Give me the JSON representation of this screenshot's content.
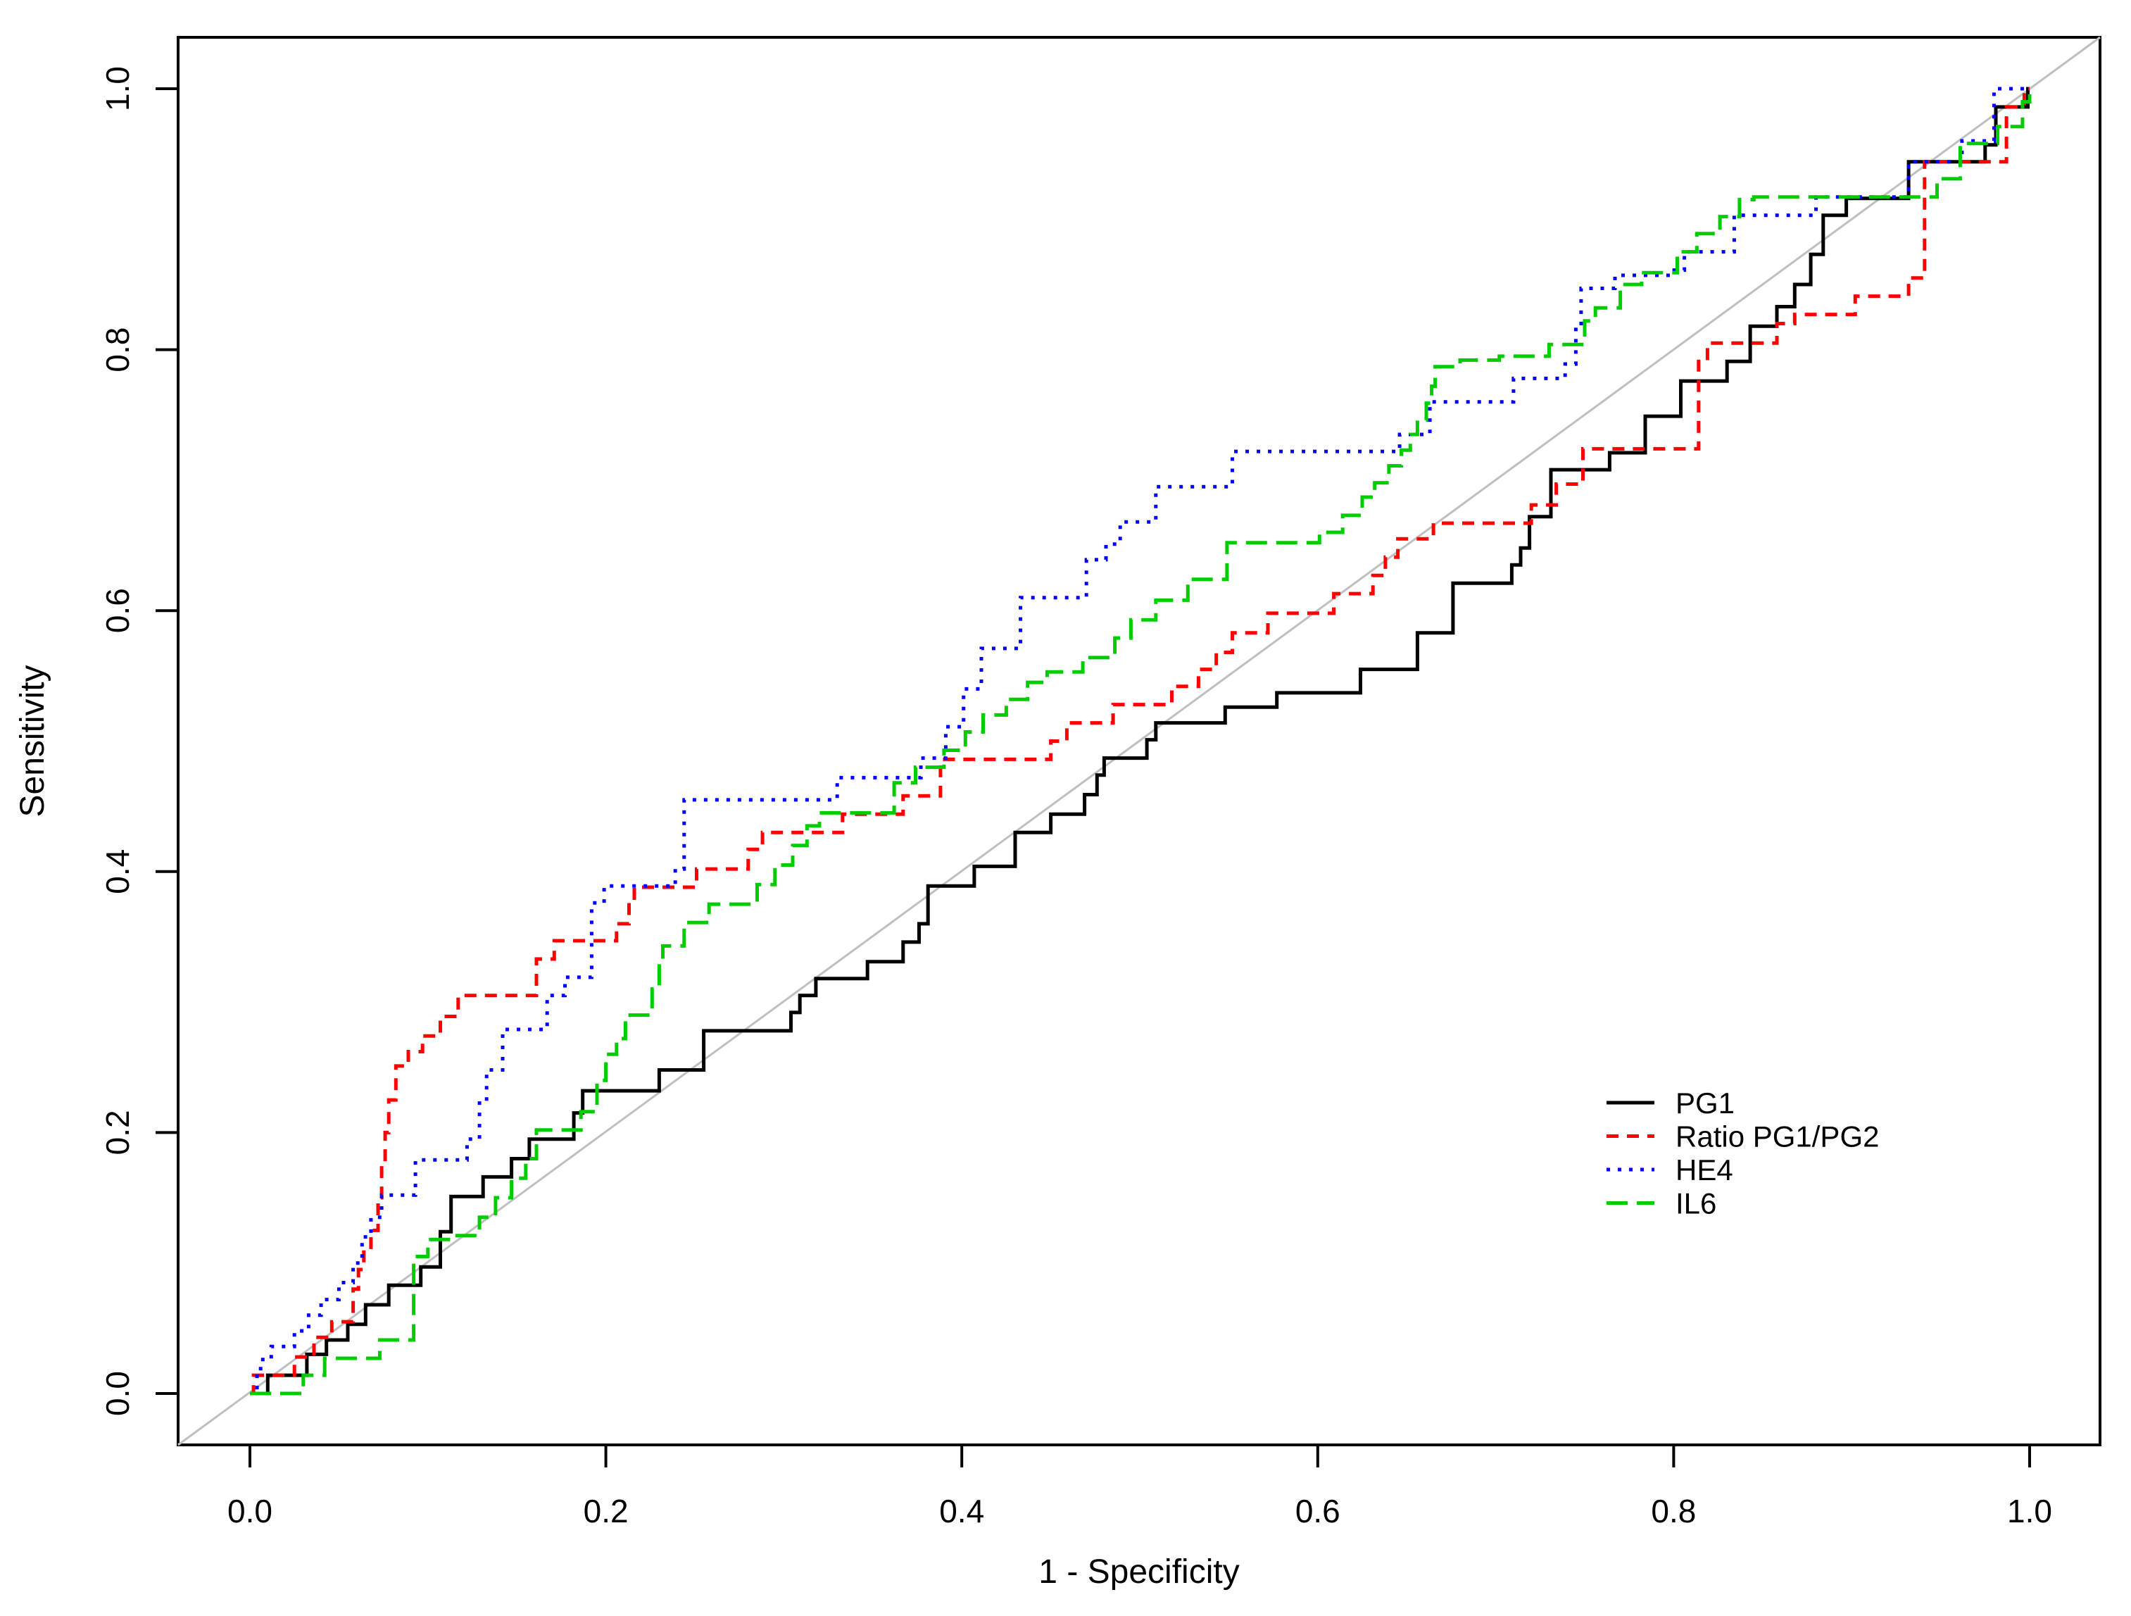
{
  "chart_data": {
    "type": "line",
    "subtype": "roc-step-curves",
    "title": "",
    "xlabel": "1 - Specificity",
    "ylabel": "Sensitivity",
    "xlim": [
      0.0,
      1.0
    ],
    "ylim": [
      0.0,
      1.0
    ],
    "axis_padding_fraction": 0.04,
    "grid": false,
    "x_ticks": {
      "values": [
        0.0,
        0.2,
        0.4,
        0.6,
        0.8,
        1.0
      ],
      "labels": [
        "0.0",
        "0.2",
        "0.4",
        "0.6",
        "0.8",
        "1.0"
      ]
    },
    "y_ticks": {
      "values": [
        0.0,
        0.2,
        0.4,
        0.6,
        0.8,
        1.0
      ],
      "labels": [
        "0.0",
        "0.2",
        "0.4",
        "0.6",
        "0.8",
        "1.0"
      ]
    },
    "reference_line": {
      "type": "diagonal",
      "from": [
        0,
        0
      ],
      "to": [
        1,
        1
      ],
      "color": "#bfbfbf",
      "style": "solid"
    },
    "legend": {
      "position": "right-lower",
      "border": false,
      "entries": [
        "PG1",
        "Ratio PG1/PG2",
        "HE4",
        "IL6"
      ]
    },
    "series": [
      {
        "name": "PG1",
        "color": "#000000",
        "linestyle": "solid",
        "dash": "",
        "points": [
          [
            0,
            0
          ],
          [
            0.01,
            0.014
          ],
          [
            0.032,
            0.03
          ],
          [
            0.043,
            0.041
          ],
          [
            0.055,
            0.053
          ],
          [
            0.065,
            0.068
          ],
          [
            0.078,
            0.083
          ],
          [
            0.096,
            0.097
          ],
          [
            0.107,
            0.124
          ],
          [
            0.113,
            0.151
          ],
          [
            0.131,
            0.166
          ],
          [
            0.147,
            0.18
          ],
          [
            0.157,
            0.195
          ],
          [
            0.182,
            0.215
          ],
          [
            0.187,
            0.232
          ],
          [
            0.23,
            0.248
          ],
          [
            0.255,
            0.278
          ],
          [
            0.304,
            0.292
          ],
          [
            0.309,
            0.305
          ],
          [
            0.318,
            0.318
          ],
          [
            0.347,
            0.331
          ],
          [
            0.367,
            0.346
          ],
          [
            0.376,
            0.36
          ],
          [
            0.381,
            0.389
          ],
          [
            0.407,
            0.404
          ],
          [
            0.43,
            0.43
          ],
          [
            0.45,
            0.444
          ],
          [
            0.469,
            0.459
          ],
          [
            0.476,
            0.474
          ],
          [
            0.48,
            0.487
          ],
          [
            0.504,
            0.501
          ],
          [
            0.509,
            0.514
          ],
          [
            0.548,
            0.526
          ],
          [
            0.577,
            0.537
          ],
          [
            0.624,
            0.555
          ],
          [
            0.656,
            0.583
          ],
          [
            0.676,
            0.621
          ],
          [
            0.709,
            0.635
          ],
          [
            0.714,
            0.648
          ],
          [
            0.719,
            0.672
          ],
          [
            0.731,
            0.708
          ],
          [
            0.764,
            0.721
          ],
          [
            0.784,
            0.749
          ],
          [
            0.804,
            0.776
          ],
          [
            0.83,
            0.791
          ],
          [
            0.843,
            0.818
          ],
          [
            0.858,
            0.833
          ],
          [
            0.868,
            0.85
          ],
          [
            0.877,
            0.873
          ],
          [
            0.884,
            0.903
          ],
          [
            0.897,
            0.916
          ],
          [
            0.932,
            0.944
          ],
          [
            0.975,
            0.957
          ],
          [
            0.981,
            0.986
          ],
          [
            0.999,
            1.0
          ],
          [
            1.0,
            1.0
          ]
        ]
      },
      {
        "name": "Ratio PG1/PG2",
        "color": "#ff0000",
        "linestyle": "dashed",
        "dash": "17,12",
        "points": [
          [
            0,
            0
          ],
          [
            0.002,
            0.014
          ],
          [
            0.025,
            0.028
          ],
          [
            0.036,
            0.043
          ],
          [
            0.046,
            0.055
          ],
          [
            0.058,
            0.08
          ],
          [
            0.061,
            0.095
          ],
          [
            0.064,
            0.11
          ],
          [
            0.068,
            0.125
          ],
          [
            0.072,
            0.15
          ],
          [
            0.074,
            0.175
          ],
          [
            0.076,
            0.2
          ],
          [
            0.078,
            0.225
          ],
          [
            0.082,
            0.251
          ],
          [
            0.089,
            0.262
          ],
          [
            0.097,
            0.274
          ],
          [
            0.107,
            0.289
          ],
          [
            0.117,
            0.305
          ],
          [
            0.161,
            0.333
          ],
          [
            0.171,
            0.347
          ],
          [
            0.206,
            0.36
          ],
          [
            0.213,
            0.376
          ],
          [
            0.216,
            0.388
          ],
          [
            0.251,
            0.402
          ],
          [
            0.28,
            0.417
          ],
          [
            0.288,
            0.43
          ],
          [
            0.333,
            0.444
          ],
          [
            0.367,
            0.458
          ],
          [
            0.388,
            0.486
          ],
          [
            0.45,
            0.5
          ],
          [
            0.459,
            0.514
          ],
          [
            0.485,
            0.528
          ],
          [
            0.518,
            0.542
          ],
          [
            0.533,
            0.555
          ],
          [
            0.543,
            0.568
          ],
          [
            0.552,
            0.583
          ],
          [
            0.572,
            0.598
          ],
          [
            0.609,
            0.613
          ],
          [
            0.631,
            0.627
          ],
          [
            0.638,
            0.641
          ],
          [
            0.645,
            0.655
          ],
          [
            0.665,
            0.667
          ],
          [
            0.72,
            0.681
          ],
          [
            0.734,
            0.697
          ],
          [
            0.749,
            0.724
          ],
          [
            0.814,
            0.791
          ],
          [
            0.819,
            0.805
          ],
          [
            0.858,
            0.82
          ],
          [
            0.868,
            0.827
          ],
          [
            0.902,
            0.841
          ],
          [
            0.932,
            0.855
          ],
          [
            0.941,
            0.944
          ],
          [
            0.987,
            0.986
          ],
          [
            0.997,
            1.0
          ],
          [
            1.0,
            1.0
          ]
        ]
      },
      {
        "name": "HE4",
        "color": "#0000ff",
        "linestyle": "dotted",
        "dash": "5,11",
        "points": [
          [
            0,
            0
          ],
          [
            0.004,
            0.016
          ],
          [
            0.006,
            0.026
          ],
          [
            0.012,
            0.036
          ],
          [
            0.025,
            0.048
          ],
          [
            0.033,
            0.06
          ],
          [
            0.04,
            0.072
          ],
          [
            0.05,
            0.085
          ],
          [
            0.058,
            0.1
          ],
          [
            0.063,
            0.12
          ],
          [
            0.068,
            0.135
          ],
          [
            0.074,
            0.152
          ],
          [
            0.093,
            0.179
          ],
          [
            0.122,
            0.195
          ],
          [
            0.129,
            0.224
          ],
          [
            0.133,
            0.248
          ],
          [
            0.142,
            0.279
          ],
          [
            0.167,
            0.305
          ],
          [
            0.177,
            0.319
          ],
          [
            0.192,
            0.376
          ],
          [
            0.199,
            0.389
          ],
          [
            0.239,
            0.402
          ],
          [
            0.244,
            0.455
          ],
          [
            0.33,
            0.472
          ],
          [
            0.377,
            0.487
          ],
          [
            0.391,
            0.511
          ],
          [
            0.401,
            0.54
          ],
          [
            0.411,
            0.571
          ],
          [
            0.433,
            0.61
          ],
          [
            0.47,
            0.639
          ],
          [
            0.481,
            0.651
          ],
          [
            0.489,
            0.668
          ],
          [
            0.509,
            0.695
          ],
          [
            0.552,
            0.722
          ],
          [
            0.646,
            0.735
          ],
          [
            0.663,
            0.76
          ],
          [
            0.71,
            0.778
          ],
          [
            0.739,
            0.789
          ],
          [
            0.745,
            0.82
          ],
          [
            0.748,
            0.847
          ],
          [
            0.767,
            0.857
          ],
          [
            0.799,
            0.861
          ],
          [
            0.806,
            0.875
          ],
          [
            0.834,
            0.903
          ],
          [
            0.88,
            0.917
          ],
          [
            0.932,
            0.944
          ],
          [
            0.962,
            0.96
          ],
          [
            0.98,
            1.0
          ],
          [
            1.0,
            1.0
          ]
        ]
      },
      {
        "name": "IL6",
        "color": "#00cd00",
        "linestyle": "longdash",
        "dash": "30,13",
        "points": [
          [
            0,
            0
          ],
          [
            0.03,
            0.014
          ],
          [
            0.042,
            0.027
          ],
          [
            0.073,
            0.041
          ],
          [
            0.092,
            0.105
          ],
          [
            0.1,
            0.118
          ],
          [
            0.114,
            0.121
          ],
          [
            0.129,
            0.135
          ],
          [
            0.138,
            0.15
          ],
          [
            0.147,
            0.165
          ],
          [
            0.155,
            0.18
          ],
          [
            0.161,
            0.202
          ],
          [
            0.186,
            0.216
          ],
          [
            0.195,
            0.24
          ],
          [
            0.2,
            0.26
          ],
          [
            0.206,
            0.272
          ],
          [
            0.211,
            0.29
          ],
          [
            0.226,
            0.31
          ],
          [
            0.23,
            0.33
          ],
          [
            0.232,
            0.343
          ],
          [
            0.244,
            0.361
          ],
          [
            0.258,
            0.375
          ],
          [
            0.285,
            0.39
          ],
          [
            0.295,
            0.405
          ],
          [
            0.305,
            0.42
          ],
          [
            0.313,
            0.435
          ],
          [
            0.32,
            0.445
          ],
          [
            0.362,
            0.468
          ],
          [
            0.374,
            0.48
          ],
          [
            0.39,
            0.493
          ],
          [
            0.402,
            0.507
          ],
          [
            0.412,
            0.52
          ],
          [
            0.425,
            0.532
          ],
          [
            0.437,
            0.545
          ],
          [
            0.448,
            0.553
          ],
          [
            0.468,
            0.564
          ],
          [
            0.486,
            0.579
          ],
          [
            0.495,
            0.593
          ],
          [
            0.509,
            0.608
          ],
          [
            0.527,
            0.624
          ],
          [
            0.549,
            0.652
          ],
          [
            0.601,
            0.66
          ],
          [
            0.614,
            0.673
          ],
          [
            0.625,
            0.687
          ],
          [
            0.632,
            0.698
          ],
          [
            0.64,
            0.711
          ],
          [
            0.647,
            0.723
          ],
          [
            0.652,
            0.735
          ],
          [
            0.656,
            0.746
          ],
          [
            0.661,
            0.759
          ],
          [
            0.664,
            0.772
          ],
          [
            0.666,
            0.787
          ],
          [
            0.68,
            0.792
          ],
          [
            0.702,
            0.795
          ],
          [
            0.73,
            0.804
          ],
          [
            0.75,
            0.822
          ],
          [
            0.756,
            0.832
          ],
          [
            0.77,
            0.85
          ],
          [
            0.782,
            0.859
          ],
          [
            0.802,
            0.875
          ],
          [
            0.813,
            0.889
          ],
          [
            0.826,
            0.902
          ],
          [
            0.837,
            0.915
          ],
          [
            0.845,
            0.917
          ],
          [
            0.948,
            0.931
          ],
          [
            0.961,
            0.958
          ],
          [
            0.982,
            0.971
          ],
          [
            0.996,
            0.99
          ],
          [
            1.0,
            1.0
          ]
        ]
      }
    ]
  }
}
